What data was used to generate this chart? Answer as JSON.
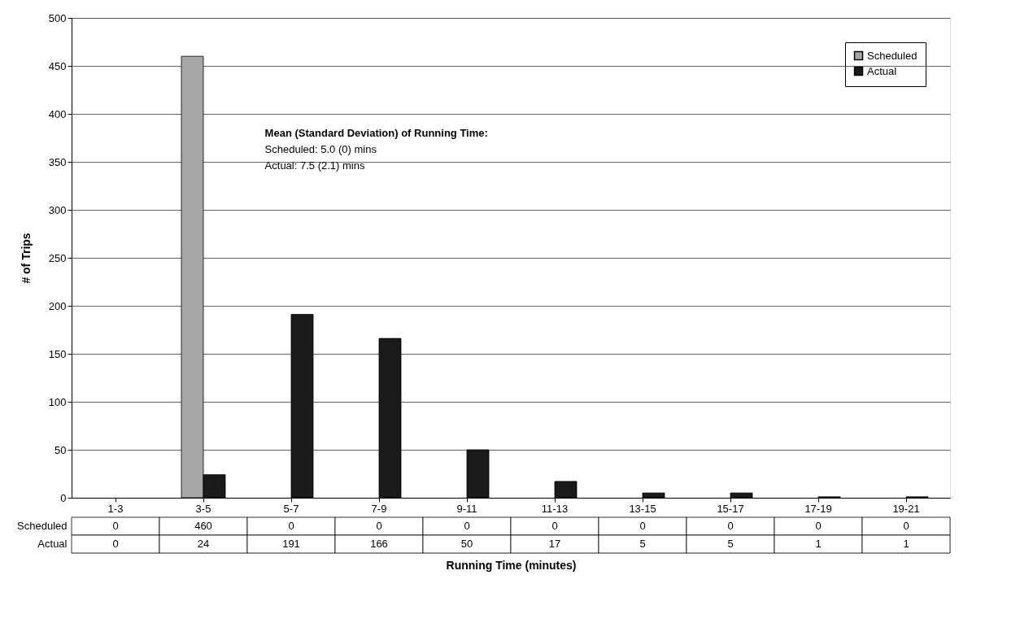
{
  "chart_data": {
    "type": "bar",
    "xlabel": "Running Time (minutes)",
    "ylabel": "# of Trips",
    "categories": [
      "1-3",
      "3-5",
      "5-7",
      "7-9",
      "9-11",
      "11-13",
      "13-15",
      "15-17",
      "17-19",
      "19-21"
    ],
    "series": [
      {
        "name": "Scheduled",
        "color": "#a6a6a6",
        "values": [
          0,
          460,
          0,
          0,
          0,
          0,
          0,
          0,
          0,
          0
        ]
      },
      {
        "name": "Actual",
        "color": "#1a1a1a",
        "values": [
          0,
          24,
          191,
          166,
          50,
          17,
          5,
          5,
          1,
          1
        ]
      }
    ],
    "ylim": [
      0,
      500
    ],
    "yticks": [
      0,
      50,
      100,
      150,
      200,
      250,
      300,
      350,
      400,
      450,
      500
    ],
    "grid": "y",
    "legend": "top right",
    "data_labels": true,
    "annotations": [
      "Mean (Standard Deviation) of Running Time:",
      "Scheduled: 5.0 (0) mins",
      "Actual: 7.5 (2.1) mins"
    ]
  }
}
